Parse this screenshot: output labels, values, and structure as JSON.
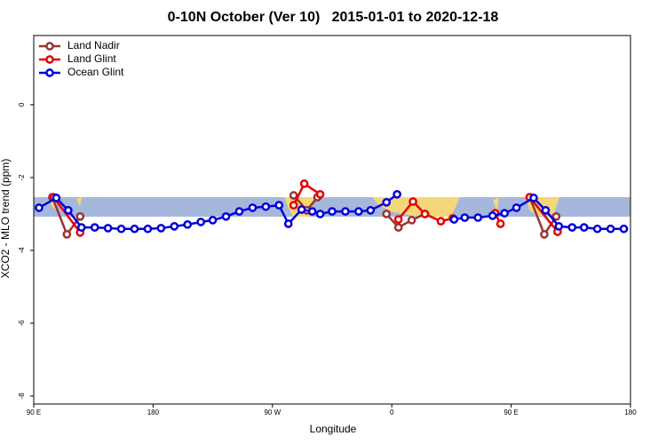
{
  "chart_data": {
    "type": "line",
    "title": "0-10N October (Ver 10)   2015-01-01 to 2020-12-18",
    "x_label": "Longitude",
    "y_label": "XCO2 - MLO trend (ppm)",
    "xlim": [
      90,
      540
    ],
    "ylim": [
      -8.22,
      1.9
    ],
    "xticks": [
      {
        "value": 90,
        "label": "90 E"
      },
      180,
      {
        "value": 270,
        "label": "90 W"
      },
      {
        "value": 360,
        "label": "0"
      },
      {
        "value": 450,
        "label": "90 E"
      },
      {
        "value": 540,
        "label": "180"
      }
    ],
    "yticks": [
      0,
      -2,
      -4,
      -6,
      -8
    ],
    "legend": "top-left",
    "series": [
      {
        "name": "Land Nadir",
        "color": "#993333",
        "x": [
          104,
          115,
          125,
          null,
          286,
          296,
          304,
          null,
          356,
          365,
          375,
          385,
          null,
          464,
          475,
          484
        ],
        "values": [
          -2.54,
          -3.56,
          -3.07,
          null,
          -2.49,
          -2.9,
          -2.54,
          null,
          -3.0,
          -3.37,
          -3.17,
          -3.0,
          null,
          -2.54,
          -3.56,
          -3.07
        ]
      },
      {
        "name": "Land Glint",
        "color": "#e60000",
        "x": [
          105,
          125,
          null,
          286,
          294,
          306,
          null,
          365,
          376,
          385,
          397,
          406,
          null,
          438,
          442,
          null,
          464,
          485
        ],
        "values": [
          -2.54,
          -3.51,
          null,
          -2.76,
          -2.17,
          -2.46,
          null,
          -3.15,
          -2.66,
          -3.0,
          -3.2,
          -3.12,
          null,
          -2.98,
          -3.27,
          null,
          -2.54,
          -3.49
        ]
      },
      {
        "name": "Ocean Glint",
        "color": "#0000dd",
        "x": [
          94,
          107,
          116,
          126,
          136,
          146,
          156,
          166,
          176,
          186,
          196,
          206,
          216,
          225,
          235,
          245,
          255,
          265,
          275,
          282,
          292,
          300,
          306,
          315,
          325,
          335,
          344,
          356,
          364,
          null,
          407,
          415,
          425,
          436,
          445,
          454,
          467,
          476,
          486,
          496,
          505,
          515,
          525,
          535
        ],
        "values": [
          -2.83,
          -2.56,
          -2.9,
          -3.37,
          -3.37,
          -3.39,
          -3.41,
          -3.41,
          -3.41,
          -3.39,
          -3.34,
          -3.29,
          -3.22,
          -3.17,
          -3.07,
          -2.93,
          -2.83,
          -2.8,
          -2.76,
          -3.27,
          -2.88,
          -2.93,
          -3.0,
          -2.93,
          -2.93,
          -2.93,
          -2.9,
          -2.68,
          -2.46,
          null,
          -3.15,
          -3.1,
          -3.1,
          -3.05,
          -2.98,
          -2.83,
          -2.56,
          -2.9,
          -3.34,
          -3.37,
          -3.37,
          -3.41,
          -3.41,
          -3.41
        ]
      }
    ]
  }
}
